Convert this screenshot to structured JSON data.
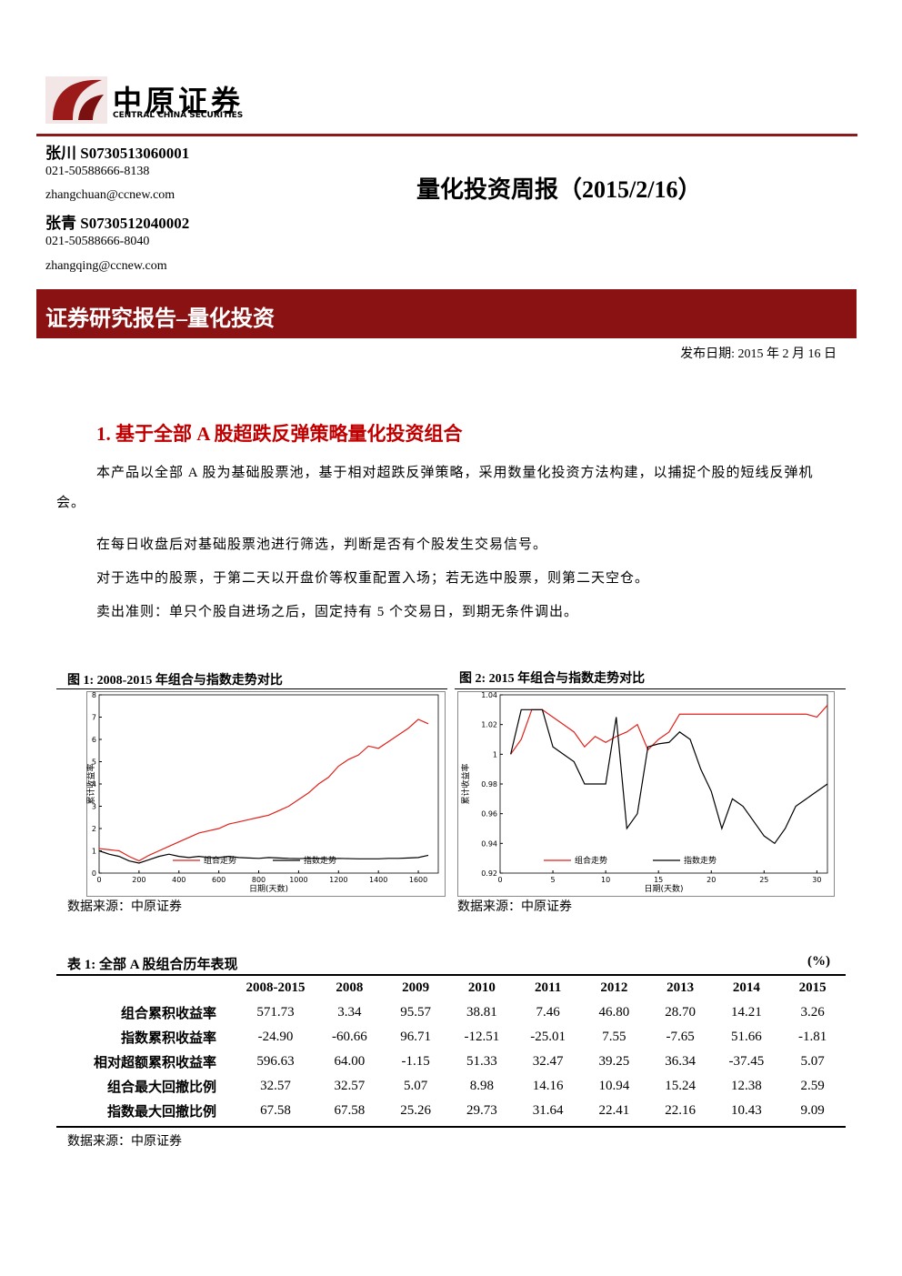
{
  "header": {
    "logo_cn": "中原证券",
    "logo_en": "CENTRAL CHINA SECURITIES"
  },
  "authors": [
    {
      "name": "张川 S0730513060001",
      "phone": "021-50588666-8138",
      "email": "zhangchuan@ccnew.com"
    },
    {
      "name": "张青 S0730512040002",
      "phone": "021-50588666-8040",
      "email": "zhangqing@ccnew.com"
    }
  ],
  "title": "量化投资周报（2015/2/16）",
  "banner": "证券研究报告–量化投资",
  "date": "发布日期: 2015 年 2 月 16 日",
  "section": {
    "heading": "1. 基于全部 A 股超跌反弹策略量化投资组合",
    "paragraphs": [
      "本产品以全部 A 股为基础股票池，基于相对超跌反弹策略，采用数量化投资方法构建，以捕捉个股的短线反弹机会。",
      "在每日收盘后对基础股票池进行筛选，判断是否有个股发生交易信号。",
      "对于选中的股票，于第二天以开盘价等权重配置入场；若无选中股票，则第二天空仓。",
      "卖出准则：单只个股自进场之后，固定持有 5 个交易日，到期无条件调出。"
    ]
  },
  "chart_data": [
    {
      "type": "line",
      "title": "图 1: 2008-2015 年组合与指数走势对比",
      "x_label": "日期(天数)",
      "y_label": "累计收益率",
      "source": "数据来源：中原证券",
      "x": [
        0,
        50,
        100,
        150,
        200,
        250,
        300,
        350,
        400,
        450,
        500,
        550,
        600,
        650,
        700,
        750,
        800,
        850,
        900,
        950,
        1000,
        1050,
        1100,
        1150,
        1200,
        1250,
        1300,
        1350,
        1400,
        1450,
        1500,
        1550,
        1600,
        1650
      ],
      "series": [
        {
          "name": "组合走势",
          "color": "#e0201a",
          "values": [
            1.1,
            1.05,
            1.0,
            0.75,
            0.55,
            0.8,
            1.0,
            1.2,
            1.4,
            1.6,
            1.8,
            1.9,
            2.0,
            2.2,
            2.3,
            2.4,
            2.5,
            2.6,
            2.8,
            3.0,
            3.3,
            3.6,
            4.0,
            4.3,
            4.8,
            5.1,
            5.3,
            5.7,
            5.6,
            5.9,
            6.2,
            6.5,
            6.9,
            6.7
          ]
        },
        {
          "name": "指数走势",
          "color": "#000000",
          "values": [
            1.0,
            0.85,
            0.75,
            0.55,
            0.45,
            0.6,
            0.75,
            0.85,
            0.75,
            0.7,
            0.75,
            0.7,
            0.7,
            0.75,
            0.7,
            0.68,
            0.66,
            0.7,
            0.68,
            0.66,
            0.65,
            0.66,
            0.66,
            0.64,
            0.66,
            0.65,
            0.64,
            0.64,
            0.64,
            0.66,
            0.66,
            0.68,
            0.7,
            0.8
          ]
        }
      ],
      "xlim": [
        0,
        1700
      ],
      "xticks": [
        0,
        200,
        400,
        600,
        800,
        1000,
        1200,
        1400,
        1600
      ],
      "ylim": [
        0,
        8
      ],
      "yticks": [
        0,
        1,
        2,
        3,
        4,
        5,
        6,
        7,
        8
      ]
    },
    {
      "type": "line",
      "title": "图 2: 2015 年组合与指数走势对比",
      "x_label": "日期(天数)",
      "y_label": "累计收益率",
      "source": "数据来源：中原证券",
      "x": [
        1,
        2,
        3,
        4,
        5,
        6,
        7,
        8,
        9,
        10,
        11,
        12,
        13,
        14,
        15,
        16,
        17,
        18,
        19,
        20,
        21,
        22,
        23,
        24,
        25,
        26,
        27,
        28,
        29,
        30,
        31
      ],
      "series": [
        {
          "name": "组合走势",
          "color": "#e0201a",
          "values": [
            1.0,
            1.01,
            1.03,
            1.03,
            1.025,
            1.02,
            1.015,
            1.005,
            1.012,
            1.008,
            1.012,
            1.015,
            1.02,
            1.003,
            1.01,
            1.015,
            1.027,
            1.027,
            1.027,
            1.027,
            1.027,
            1.027,
            1.027,
            1.027,
            1.027,
            1.027,
            1.027,
            1.027,
            1.027,
            1.025,
            1.033
          ]
        },
        {
          "name": "指数走势",
          "color": "#000000",
          "values": [
            1.0,
            1.03,
            1.03,
            1.03,
            1.005,
            1.0,
            0.995,
            0.98,
            0.98,
            0.98,
            1.025,
            0.95,
            0.96,
            1.005,
            1.007,
            1.008,
            1.015,
            1.01,
            0.99,
            0.975,
            0.95,
            0.97,
            0.965,
            0.955,
            0.945,
            0.94,
            0.95,
            0.965,
            0.97,
            0.975,
            0.98
          ]
        }
      ],
      "xlim": [
        0,
        31
      ],
      "xticks": [
        0,
        5,
        10,
        15,
        20,
        25,
        30
      ],
      "ylim": [
        0.92,
        1.04
      ],
      "yticks": [
        0.92,
        0.94,
        0.96,
        0.98,
        1,
        1.02,
        1.04
      ]
    }
  ],
  "table": {
    "caption": "表 1: 全部 A 股组合历年表现",
    "unit": "(%)",
    "columns": [
      "2008-2015",
      "2008",
      "2009",
      "2010",
      "2011",
      "2012",
      "2013",
      "2014",
      "2015"
    ],
    "rows": [
      {
        "label": "组合累积收益率",
        "values": [
          "571.73",
          "3.34",
          "95.57",
          "38.81",
          "7.46",
          "46.80",
          "28.70",
          "14.21",
          "3.26"
        ]
      },
      {
        "label": "指数累积收益率",
        "values": [
          "-24.90",
          "-60.66",
          "96.71",
          "-12.51",
          "-25.01",
          "7.55",
          "-7.65",
          "51.66",
          "-1.81"
        ]
      },
      {
        "label": "相对超额累积收益率",
        "values": [
          "596.63",
          "64.00",
          "-1.15",
          "51.33",
          "32.47",
          "39.25",
          "36.34",
          "-37.45",
          "5.07"
        ]
      },
      {
        "label": "组合最大回撤比例",
        "values": [
          "32.57",
          "32.57",
          "5.07",
          "8.98",
          "14.16",
          "10.94",
          "15.24",
          "12.38",
          "2.59"
        ]
      },
      {
        "label": "指数最大回撤比例",
        "values": [
          "67.58",
          "67.58",
          "25.26",
          "29.73",
          "31.64",
          "22.41",
          "22.16",
          "10.43",
          "9.09"
        ]
      }
    ],
    "source": "数据来源：中原证券"
  }
}
